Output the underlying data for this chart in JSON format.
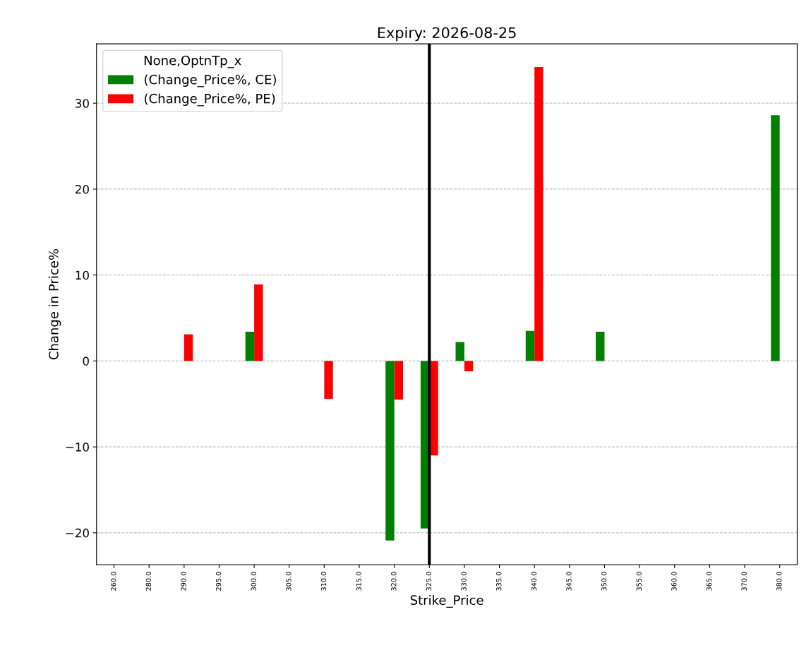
{
  "chart_data": {
    "type": "bar",
    "title": "Expiry: 2026-08-25",
    "xlabel": "Strike_Price",
    "ylabel": "Change in Price%",
    "legend_title": "None,OptnTp_x",
    "categories": [
      "260.0",
      "280.0",
      "290.0",
      "295.0",
      "300.0",
      "305.0",
      "310.0",
      "315.0",
      "320.0",
      "325.0",
      "330.0",
      "335.0",
      "340.0",
      "345.0",
      "350.0",
      "355.0",
      "360.0",
      "365.0",
      "370.0",
      "380.0"
    ],
    "series": [
      {
        "name": "(Change_Price%, CE)",
        "color": "#008000",
        "values": [
          null,
          null,
          null,
          null,
          3.4,
          null,
          null,
          null,
          -20.9,
          -19.5,
          2.2,
          null,
          3.5,
          null,
          3.4,
          null,
          null,
          null,
          null,
          28.6
        ]
      },
      {
        "name": "(Change_Price%, PE)",
        "color": "#ff0000",
        "values": [
          null,
          null,
          3.1,
          null,
          8.9,
          null,
          -4.4,
          null,
          -4.5,
          -11.0,
          -1.2,
          null,
          34.2,
          null,
          null,
          null,
          null,
          null,
          null,
          null
        ]
      }
    ],
    "ylim": [
      -23.7,
      36.9
    ],
    "yticks": [
      {
        "value": -20,
        "label": "−20"
      },
      {
        "value": -10,
        "label": "−10"
      },
      0,
      10,
      20,
      30
    ],
    "ref_lines": [
      {
        "axis": "x",
        "value": "325.0",
        "color": "#000000",
        "line_style": "solid"
      }
    ],
    "grid": "y",
    "legend": "top left"
  }
}
